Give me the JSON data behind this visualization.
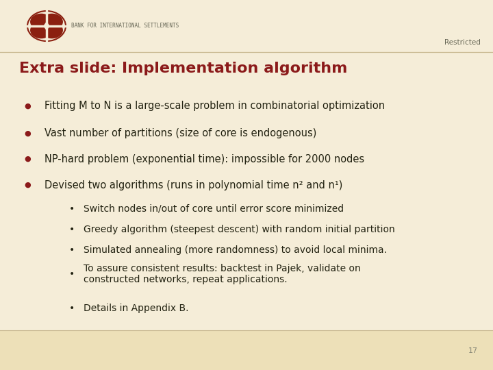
{
  "bg_color": "#f5edd8",
  "footer_color": "#ede0b8",
  "title": "Extra slide: Implementation algorithm",
  "title_color": "#8b1a1a",
  "title_fontsize": 16,
  "restricted_text": "Restricted",
  "restricted_color": "#666655",
  "restricted_fontsize": 7.5,
  "bis_text": "BANK FOR INTERNATIONAL SETTLEMENTS",
  "bis_color": "#666655",
  "bis_fontsize": 5.5,
  "bullet_color": "#8b1a1a",
  "text_color": "#222211",
  "bullet_fontsize": 10.5,
  "sub_bullet_fontsize": 10,
  "page_number": "17",
  "page_color": "#888877",
  "page_fontsize": 8,
  "header_line_color": "#c8b890",
  "footer_line_color": "#c8b890",
  "main_bullets": [
    "Fitting M to N is a large-scale problem in combinatorial optimization",
    "Vast number of partitions (size of core is endogenous)",
    "NP-hard problem (exponential time): impossible for 2000 nodes",
    "Devised two algorithms (runs in polynomial time n² and n¹)"
  ],
  "sub_bullets": [
    "Switch nodes in/out of core until error score minimized",
    "Greedy algorithm (steepest descent) with random initial partition",
    "Simulated annealing (more randomness) to avoid local minima.",
    "To assure consistent results: backtest in Pajek, validate on\nconstructed networks, repeat applications.",
    "Details in Appendix B."
  ],
  "logo_color": "#8b2010"
}
